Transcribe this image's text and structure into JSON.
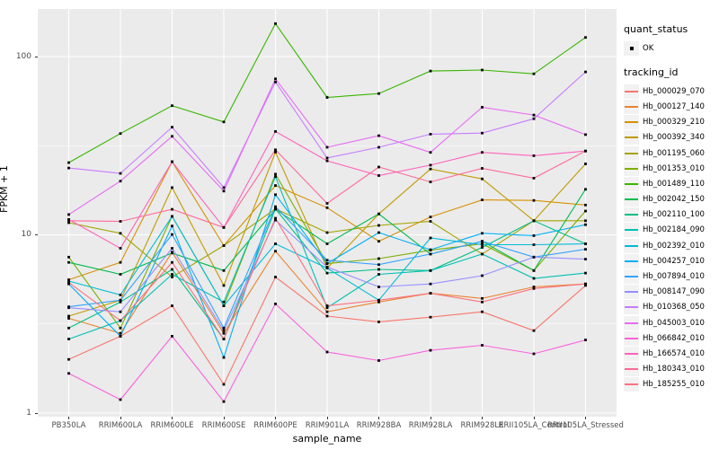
{
  "chart_data": {
    "type": "line",
    "title": "",
    "xlabel": "sample_name",
    "ylabel": "FPKM + 1",
    "y_scale": "log10",
    "ylim": [
      1,
      200
    ],
    "y_major_ticks": [
      1,
      10,
      100
    ],
    "y_minor_ticks": [
      3.162,
      31.62
    ],
    "grid": "white-on-gray",
    "legend_position": "right",
    "marker": "black-square",
    "categories": [
      "PB350LA",
      "RRIM600LA",
      "RRIM600LE",
      "RRIM600SE",
      "RRIM600PE",
      "RRIM901LA",
      "RRIM928BA",
      "RRIM928LA",
      "RRIM928LE",
      "RRII105LA_Control",
      "RRII105LA_Stressed"
    ],
    "series": [
      {
        "name": "Hb_000029_070",
        "color": "#F8766D",
        "values": [
          2.0,
          2.7,
          4.0,
          1.45,
          5.8,
          3.5,
          3.25,
          3.45,
          3.7,
          2.9,
          5.2
        ]
      },
      {
        "name": "Hb_000127_140",
        "color": "#EA8331",
        "values": [
          3.4,
          2.8,
          8.0,
          2.8,
          8.1,
          3.7,
          4.2,
          4.7,
          4.4,
          5.1,
          5.3
        ]
      },
      {
        "name": "Hb_000329_210",
        "color": "#D89000",
        "values": [
          5.6,
          7.0,
          25.7,
          8.7,
          18.9,
          14.2,
          9.2,
          12.6,
          15.7,
          15.6,
          14.7
        ]
      },
      {
        "name": "Hb_000392_340",
        "color": "#C09B00",
        "values": [
          3.5,
          4.3,
          18.4,
          5.2,
          29.1,
          6.5,
          13.1,
          23.4,
          20.6,
          12.0,
          25.0
        ]
      },
      {
        "name": "Hb_001195_060",
        "color": "#A3A500",
        "values": [
          11.7,
          10.2,
          5.8,
          8.7,
          14.0,
          10.3,
          11.3,
          11.9,
          7.8,
          12.0,
          12.0
        ]
      },
      {
        "name": "Hb_001353_010",
        "color": "#7CAE00",
        "values": [
          7.5,
          3.0,
          12.7,
          4.0,
          21.9,
          6.9,
          7.35,
          8.2,
          8.9,
          6.3,
          13.6
        ]
      },
      {
        "name": "Hb_001489_110",
        "color": "#39B600",
        "values": [
          25.4,
          37,
          53,
          43,
          153,
          59,
          62,
          83,
          84,
          80,
          128
        ]
      },
      {
        "name": "Hb_002042_150",
        "color": "#00BB4E",
        "values": [
          7.0,
          6.0,
          7.9,
          6.3,
          13.9,
          8.9,
          13.1,
          7.8,
          9.2,
          6.3,
          18.0
        ]
      },
      {
        "name": "Hb_002110_100",
        "color": "#00C087",
        "values": [
          3.0,
          4.2,
          6.4,
          2.6,
          14.0,
          6.1,
          6.4,
          6.3,
          8.5,
          12.0,
          8.9
        ]
      },
      {
        "name": "Hb_002184_090",
        "color": "#00C0B2",
        "values": [
          2.6,
          3.3,
          6.0,
          4.2,
          21.2,
          3.9,
          6.0,
          6.3,
          7.8,
          5.7,
          6.1
        ]
      },
      {
        "name": "Hb_002392_010",
        "color": "#00BCD8",
        "values": [
          5.5,
          4.6,
          12.7,
          4.0,
          8.9,
          6.5,
          4.3,
          9.6,
          8.8,
          8.8,
          8.9
        ]
      },
      {
        "name": "Hb_004257_010",
        "color": "#00B0F6",
        "values": [
          5.3,
          2.7,
          11.2,
          2.05,
          16.8,
          6.9,
          10.3,
          8.25,
          10.2,
          9.9,
          11.4
        ]
      },
      {
        "name": "Hb_007894_010",
        "color": "#35A2FF",
        "values": [
          3.95,
          4.3,
          10.05,
          3.0,
          14.4,
          7.2,
          6.8,
          7.8,
          9.2,
          7.5,
          8.3
        ]
      },
      {
        "name": "Hb_008147_090",
        "color": "#9590FF",
        "values": [
          3.9,
          3.7,
          8.4,
          2.9,
          12.1,
          6.6,
          5.1,
          5.3,
          5.9,
          7.5,
          7.3
        ]
      },
      {
        "name": "Hb_010368_050",
        "color": "#C77CFF",
        "values": [
          23.7,
          22.1,
          40.2,
          18.4,
          72,
          27,
          31,
          36.7,
          37.2,
          44.8,
          82
        ]
      },
      {
        "name": "Hb_045003_010",
        "color": "#E76BF3",
        "values": [
          13,
          20,
          35.7,
          17.6,
          75,
          31,
          36,
          29,
          52,
          47,
          36.5
        ]
      },
      {
        "name": "Hb_066842_010",
        "color": "#FA62DB",
        "values": [
          1.67,
          1.19,
          2.7,
          1.16,
          4.1,
          2.2,
          1.97,
          2.25,
          2.4,
          2.15,
          2.57
        ]
      },
      {
        "name": "Hb_166574_010",
        "color": "#FF62BC",
        "values": [
          12.2,
          8.4,
          25.7,
          11.0,
          38,
          26,
          21.5,
          24.6,
          29,
          27.8,
          29.5
        ]
      },
      {
        "name": "Hb_180343_010",
        "color": "#FF6A98",
        "values": [
          12.0,
          11.9,
          13.9,
          11.0,
          30,
          15,
          24,
          19.8,
          23.6,
          20.8,
          29.5
        ]
      },
      {
        "name": "Hb_185255_010",
        "color": "#FC717F",
        "values": [
          5.4,
          3.3,
          7.0,
          2.6,
          12.4,
          4.0,
          4.3,
          4.7,
          4.2,
          5.0,
          5.3
        ]
      }
    ]
  },
  "legend": {
    "quant_status_title": "quant_status",
    "quant_status_items": [
      "OK"
    ],
    "tracking_title": "tracking_id"
  },
  "colors": {
    "panel_background": "#EBEBEB",
    "grid": "#FFFFFF",
    "axis_text": "#4D4D4D",
    "tick_mark": "#333333",
    "marker": "#000000",
    "legend_key_background": "#F2F2F2"
  }
}
